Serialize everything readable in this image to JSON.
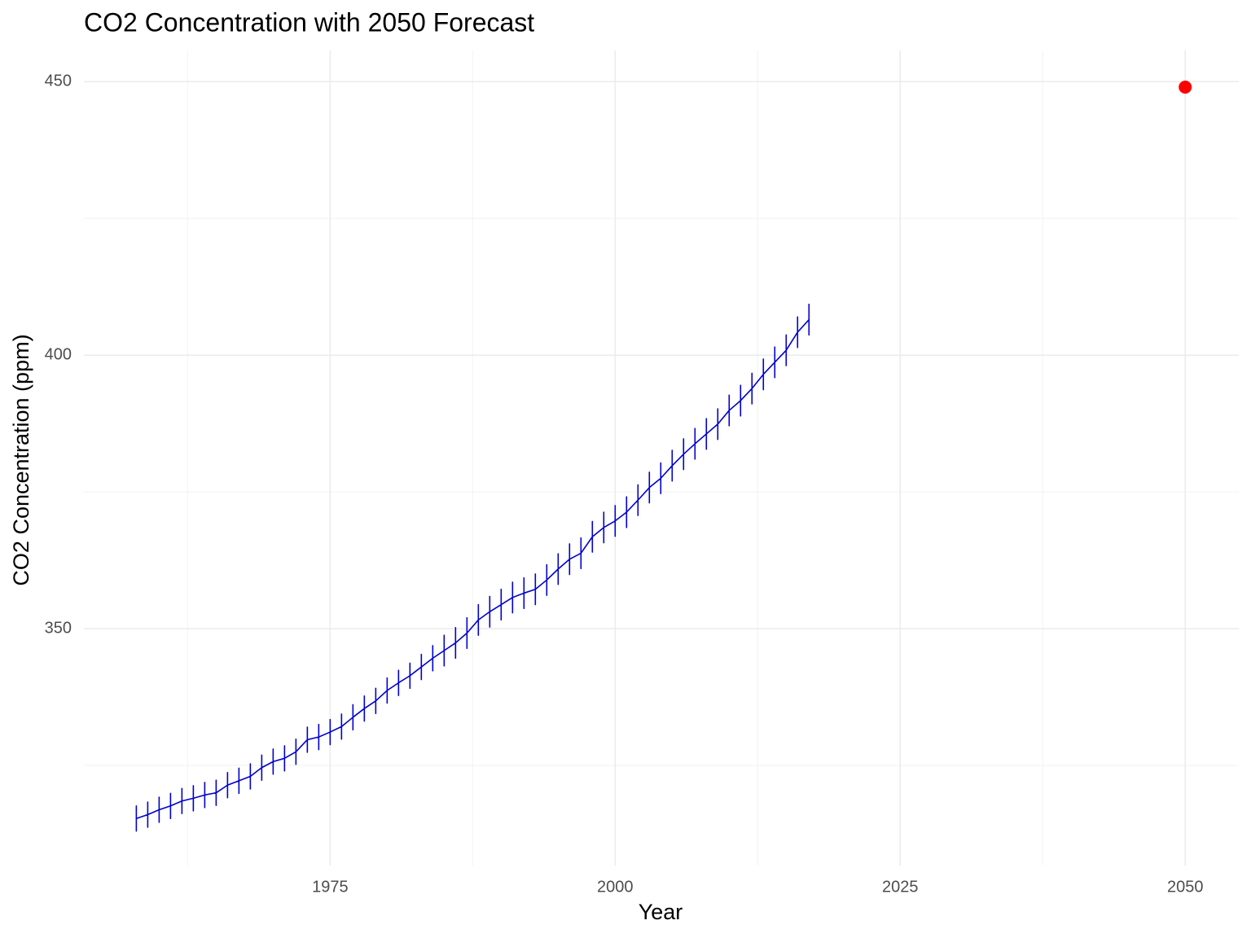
{
  "chart_data": {
    "type": "line",
    "title": "CO2 Concentration with 2050 Forecast",
    "xlabel": "Year",
    "ylabel": "CO2 Concentration (ppm)",
    "xlim": [
      1953.4,
      2054.7
    ],
    "ylim": [
      306.7,
      455.7
    ],
    "xticks": [
      1975,
      2000,
      2025,
      2050
    ],
    "xminor": [
      1962.5,
      1987.5,
      2012.5,
      2037.5
    ],
    "yticks": [
      350,
      400,
      450
    ],
    "yminor": [
      325,
      375,
      425
    ],
    "grid": true,
    "series": [
      {
        "style": "line",
        "color": "#0000cd",
        "x": [
          1958,
          1958,
          1958,
          1958,
          1959,
          1959,
          1959,
          1959,
          1960,
          1960,
          1960,
          1960,
          1961,
          1961,
          1961,
          1961,
          1962,
          1962,
          1962,
          1962,
          1963,
          1963,
          1963,
          1963,
          1964,
          1964,
          1964,
          1964,
          1965,
          1965,
          1965,
          1965,
          1966,
          1966,
          1966,
          1966,
          1967,
          1967,
          1967,
          1967,
          1968,
          1968,
          1968,
          1968,
          1969,
          1969,
          1969,
          1969,
          1970,
          1970,
          1970,
          1970,
          1971,
          1971,
          1971,
          1971,
          1972,
          1972,
          1972,
          1972,
          1973,
          1973,
          1973,
          1973,
          1974,
          1974,
          1974,
          1974,
          1975,
          1975,
          1975,
          1975,
          1976,
          1976,
          1976,
          1976,
          1977,
          1977,
          1977,
          1977,
          1978,
          1978,
          1978,
          1978,
          1979,
          1979,
          1979,
          1979,
          1980,
          1980,
          1980,
          1980,
          1981,
          1981,
          1981,
          1981,
          1982,
          1982,
          1982,
          1982,
          1983,
          1983,
          1983,
          1983,
          1984,
          1984,
          1984,
          1984,
          1985,
          1985,
          1985,
          1985,
          1986,
          1986,
          1986,
          1986,
          1987,
          1987,
          1987,
          1987,
          1988,
          1988,
          1988,
          1988,
          1989,
          1989,
          1989,
          1989,
          1990,
          1990,
          1990,
          1990,
          1991,
          1991,
          1991,
          1991,
          1992,
          1992,
          1992,
          1992,
          1993,
          1993,
          1993,
          1993,
          1994,
          1994,
          1994,
          1994,
          1995,
          1995,
          1995,
          1995,
          1996,
          1996,
          1996,
          1996,
          1997,
          1997,
          1997,
          1997,
          1998,
          1998,
          1998,
          1998,
          1999,
          1999,
          1999,
          1999,
          2000,
          2000,
          2000,
          2000,
          2001,
          2001,
          2001,
          2001,
          2002,
          2002,
          2002,
          2002,
          2003,
          2003,
          2003,
          2003,
          2004,
          2004,
          2004,
          2004,
          2005,
          2005,
          2005,
          2005,
          2006,
          2006,
          2006,
          2006,
          2007,
          2007,
          2007,
          2007,
          2008,
          2008,
          2008,
          2008,
          2009,
          2009,
          2009,
          2009,
          2010,
          2010,
          2010,
          2010,
          2011,
          2011,
          2011,
          2011,
          2012,
          2012,
          2012,
          2012,
          2013,
          2013,
          2013,
          2013,
          2014,
          2014,
          2014,
          2014,
          2015,
          2015,
          2015,
          2015,
          2016,
          2016,
          2016,
          2016,
          2017,
          2017,
          2017,
          2017
        ],
        "values": [
          315.3,
          317.6,
          313.0,
          315.3,
          316.0,
          318.3,
          313.7,
          316.0,
          316.9,
          319.2,
          314.6,
          316.9,
          317.6,
          319.9,
          315.3,
          317.6,
          318.5,
          320.8,
          316.2,
          318.5,
          319.0,
          321.3,
          316.7,
          319.0,
          319.6,
          321.9,
          317.3,
          319.6,
          320.0,
          322.3,
          317.7,
          320.0,
          321.4,
          323.7,
          319.1,
          321.4,
          322.2,
          324.5,
          319.9,
          322.2,
          323.0,
          325.3,
          320.7,
          323.0,
          324.6,
          326.9,
          322.3,
          324.6,
          325.7,
          328.0,
          323.4,
          325.7,
          326.3,
          328.6,
          324.0,
          326.3,
          327.5,
          329.8,
          325.2,
          327.5,
          329.7,
          332.0,
          327.4,
          329.7,
          330.2,
          332.5,
          327.9,
          330.2,
          331.1,
          333.4,
          328.8,
          331.1,
          332.1,
          334.4,
          329.8,
          332.1,
          333.8,
          336.1,
          331.5,
          333.8,
          335.4,
          337.7,
          333.1,
          335.4,
          336.8,
          339.1,
          334.5,
          336.8,
          338.7,
          341.0,
          336.4,
          338.7,
          340.1,
          342.4,
          337.8,
          340.1,
          341.4,
          343.7,
          339.1,
          341.4,
          343.0,
          345.3,
          340.7,
          343.0,
          344.6,
          346.9,
          342.3,
          344.6,
          346.0,
          348.8,
          343.2,
          346.0,
          347.4,
          350.2,
          344.6,
          347.4,
          349.2,
          352.0,
          346.4,
          349.2,
          351.6,
          354.4,
          348.8,
          351.6,
          353.1,
          355.9,
          350.3,
          353.1,
          354.4,
          357.2,
          351.6,
          354.4,
          355.7,
          358.5,
          352.9,
          355.7,
          356.5,
          359.3,
          353.7,
          356.5,
          357.2,
          360.0,
          354.4,
          357.2,
          358.9,
          361.7,
          356.1,
          358.9,
          360.9,
          363.7,
          358.1,
          360.9,
          362.7,
          365.5,
          359.9,
          362.7,
          363.8,
          366.6,
          361.0,
          363.8,
          366.8,
          369.6,
          364.0,
          366.8,
          368.5,
          371.3,
          365.7,
          368.5,
          369.7,
          372.5,
          366.9,
          369.7,
          371.3,
          374.1,
          368.5,
          371.3,
          373.5,
          376.3,
          370.7,
          373.5,
          375.8,
          378.6,
          373.0,
          375.8,
          377.5,
          380.3,
          374.7,
          377.5,
          379.8,
          382.6,
          377.0,
          379.8,
          381.9,
          384.7,
          379.1,
          381.9,
          383.8,
          386.6,
          381.0,
          383.8,
          385.6,
          388.4,
          382.8,
          385.6,
          387.4,
          390.2,
          384.6,
          387.4,
          389.9,
          392.7,
          387.1,
          389.9,
          391.7,
          394.5,
          388.9,
          391.7,
          393.9,
          396.7,
          391.1,
          393.9,
          396.5,
          399.3,
          393.7,
          396.5,
          398.7,
          401.5,
          395.9,
          398.7,
          400.9,
          403.7,
          398.1,
          400.9,
          404.2,
          407.0,
          401.4,
          404.2,
          406.5,
          409.3,
          403.7,
          406.5
        ]
      },
      {
        "style": "point",
        "color": "#ff0000",
        "x": [
          2050
        ],
        "values": [
          449.0
        ]
      }
    ]
  }
}
